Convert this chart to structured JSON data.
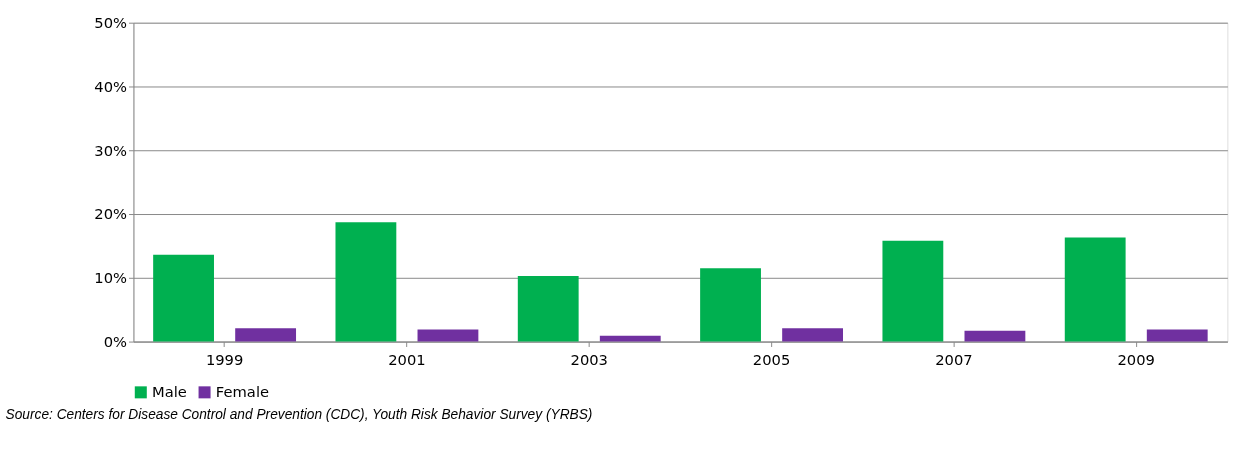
{
  "chart_data": {
    "type": "bar",
    "categories": [
      "1999",
      "2001",
      "2003",
      "2005",
      "2007",
      "2009"
    ],
    "series": [
      {
        "name": "Male",
        "color": "#00b050",
        "values": [
          13.6,
          18.7,
          10.3,
          11.5,
          15.8,
          16.3
        ]
      },
      {
        "name": "Female",
        "color": "#7030a0",
        "values": [
          2.1,
          1.9,
          0.9,
          2.1,
          1.7,
          1.9
        ]
      }
    ],
    "ylim": [
      0,
      50
    ],
    "yticks": [
      {
        "value": 0,
        "label": "0%"
      },
      {
        "value": 10,
        "label": "10%"
      },
      {
        "value": 20,
        "label": "20%"
      },
      {
        "value": 30,
        "label": "30%"
      },
      {
        "value": 40,
        "label": "40%"
      },
      {
        "value": 50,
        "label": "50%"
      }
    ],
    "grid": "y",
    "legend": "bottom",
    "annotations": [
      "Source: Centers for Disease Control and Prevention (CDC), Youth Risk Behavior Survey (YRBS)"
    ]
  }
}
